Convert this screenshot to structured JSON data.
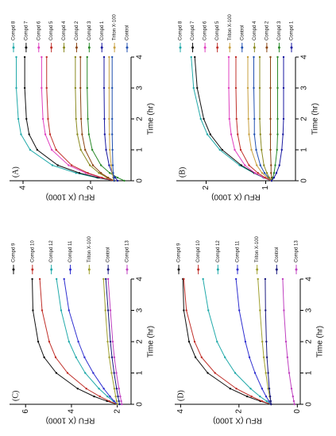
{
  "chart_data": [
    {
      "type": "line",
      "label": "(A)",
      "ylabel": "RFU (X 1000)",
      "xlabel": "Time (hr)",
      "x": [
        0,
        0.1,
        0.25,
        0.5,
        1,
        1.5,
        2,
        3,
        4
      ],
      "xlim": [
        0,
        4
      ],
      "xticks": [
        0,
        1,
        2,
        3,
        4
      ],
      "ylim": [
        0.8,
        4.4
      ],
      "yticks": [
        2,
        4
      ],
      "series": [
        {
          "name": "Compd 8",
          "color": "#22aaaa",
          "values": [
            1.3,
            1.82,
            2.43,
            3.13,
            3.79,
            4.06,
            4.14,
            4.2,
            4.2
          ]
        },
        {
          "name": "Compd 7",
          "color": "#111111",
          "values": [
            1.3,
            1.78,
            2.33,
            2.97,
            3.58,
            3.82,
            3.9,
            3.95,
            3.95
          ]
        },
        {
          "name": "Compd 6",
          "color": "#e040c0",
          "values": [
            1.3,
            1.69,
            2.14,
            2.65,
            3.15,
            3.34,
            3.41,
            3.45,
            3.45
          ]
        },
        {
          "name": "Compd 5",
          "color": "#c0302a",
          "values": [
            1.3,
            1.66,
            2.08,
            2.56,
            3.02,
            3.2,
            3.26,
            3.3,
            3.3
          ]
        },
        {
          "name": "Compd 4",
          "color": "#8a8a20",
          "values": [
            1.3,
            1.51,
            1.75,
            2.02,
            2.29,
            2.39,
            2.43,
            2.45,
            2.45
          ]
        },
        {
          "name": "Compd 2",
          "color": "#8b4513",
          "values": [
            1.3,
            1.48,
            1.69,
            1.93,
            2.16,
            2.25,
            2.28,
            2.3,
            2.3
          ]
        },
        {
          "name": "Compd 3",
          "color": "#2a8a2a",
          "values": [
            1.0,
            1.2,
            1.43,
            1.69,
            1.95,
            2.05,
            2.08,
            2.1,
            2.1
          ]
        },
        {
          "name": "Compd 1",
          "color": "#1a1aa0",
          "values": [
            1.2,
            1.27,
            1.36,
            1.45,
            1.54,
            1.58,
            1.59,
            1.6,
            1.6
          ]
        },
        {
          "name": "Triton X-100",
          "color": "#c8a040",
          "values": [
            1.3,
            1.33,
            1.36,
            1.39,
            1.43,
            1.44,
            1.45,
            1.45,
            1.45
          ]
        },
        {
          "name": "Control",
          "color": "#2050b0",
          "values": [
            1.3,
            1.31,
            1.33,
            1.34,
            1.35,
            1.36,
            1.36,
            1.36,
            1.36
          ]
        }
      ]
    },
    {
      "type": "line",
      "label": "(B)",
      "ylabel": "RFU (X 1000)",
      "xlabel": "Time (hr)",
      "x": [
        0,
        0.1,
        0.25,
        0.5,
        1,
        1.5,
        2,
        3,
        4
      ],
      "xlim": [
        0,
        4
      ],
      "xticks": [
        0,
        1,
        2,
        3,
        4
      ],
      "ylim": [
        0.5,
        2.5
      ],
      "yticks": [
        1,
        2
      ],
      "series": [
        {
          "name": "Compd 8",
          "color": "#22aaaa",
          "values": [
            0.9,
            1.04,
            1.2,
            1.44,
            1.77,
            1.98,
            2.09,
            2.21,
            2.25
          ]
        },
        {
          "name": "Compd 7",
          "color": "#111111",
          "values": [
            0.9,
            1.03,
            1.19,
            1.41,
            1.73,
            1.93,
            2.04,
            2.15,
            2.19
          ]
        },
        {
          "name": "Compd 6",
          "color": "#e040c0",
          "values": [
            0.9,
            1.03,
            1.18,
            1.35,
            1.52,
            1.58,
            1.61,
            1.62,
            1.62
          ]
        },
        {
          "name": "Compd 5",
          "color": "#c0302a",
          "values": [
            0.9,
            1.01,
            1.13,
            1.28,
            1.42,
            1.47,
            1.49,
            1.5,
            1.5
          ]
        },
        {
          "name": "Triton X-100",
          "color": "#c8a040",
          "values": [
            0.9,
            0.97,
            1.06,
            1.15,
            1.24,
            1.28,
            1.29,
            1.3,
            1.3
          ]
        },
        {
          "name": "Control",
          "color": "#2050b0",
          "values": [
            0.9,
            0.95,
            1.02,
            1.09,
            1.16,
            1.19,
            1.19,
            1.2,
            1.2
          ]
        },
        {
          "name": "Compd 4",
          "color": "#8a8a20",
          "values": [
            0.9,
            0.94,
            0.98,
            1.03,
            1.07,
            1.09,
            1.1,
            1.1,
            1.1
          ]
        },
        {
          "name": "Compd 2",
          "color": "#8b4513",
          "values": [
            0.9,
            0.9,
            0.91,
            0.91,
            0.92,
            0.92,
            0.92,
            0.92,
            0.92
          ]
        },
        {
          "name": "Compd 3",
          "color": "#2a8a2a",
          "values": [
            0.9,
            0.88,
            0.86,
            0.84,
            0.81,
            0.8,
            0.8,
            0.8,
            0.8
          ]
        },
        {
          "name": "Compd 1",
          "color": "#1a1aa0",
          "values": [
            0.9,
            0.86,
            0.82,
            0.77,
            0.73,
            0.71,
            0.7,
            0.7,
            0.7
          ]
        }
      ]
    },
    {
      "type": "line",
      "label": "(C)",
      "ylabel": "RFU (X 1000)",
      "xlabel": "Time (hr)",
      "x": [
        0,
        0.1,
        0.25,
        0.5,
        1,
        1.5,
        2,
        3,
        4
      ],
      "xlim": [
        0,
        4
      ],
      "xticks": [
        0,
        1,
        2,
        3,
        4
      ],
      "ylim": [
        1.4,
        6.7
      ],
      "yticks": [
        2,
        4,
        6
      ],
      "series": [
        {
          "name": "Compd 9",
          "color": "#111111",
          "values": [
            2.0,
            2.45,
            3.01,
            3.73,
            4.66,
            5.19,
            5.45,
            5.68,
            5.71
          ]
        },
        {
          "name": "Compd 10",
          "color": "#c0302a",
          "values": [
            2.0,
            2.35,
            2.76,
            3.35,
            4.17,
            4.69,
            4.97,
            5.28,
            5.38
          ]
        },
        {
          "name": "Compd 12",
          "color": "#22aaaa",
          "values": [
            2.0,
            2.17,
            2.43,
            2.8,
            3.4,
            3.8,
            4.11,
            4.45,
            4.65
          ]
        },
        {
          "name": "Compd 11",
          "color": "#3030d0",
          "values": [
            2.0,
            2.14,
            2.32,
            2.59,
            3.05,
            3.43,
            3.7,
            4.11,
            4.32
          ]
        },
        {
          "name": "Triton X-100",
          "color": "#a0a030",
          "values": [
            2.0,
            2.03,
            2.07,
            2.13,
            2.25,
            2.35,
            2.42,
            2.52,
            2.6
          ]
        },
        {
          "name": "Control",
          "color": "#1a1a80",
          "values": [
            1.9,
            1.93,
            1.97,
            2.03,
            2.14,
            2.23,
            2.3,
            2.4,
            2.5
          ]
        },
        {
          "name": "Compd 13",
          "color": "#c040c0",
          "values": [
            1.8,
            1.83,
            1.87,
            1.93,
            2.04,
            2.13,
            2.2,
            2.3,
            2.4
          ]
        }
      ]
    },
    {
      "type": "line",
      "label": "(D)",
      "ylabel": "RFU (X 1000)",
      "xlabel": "Time (hr)",
      "x": [
        0,
        0.1,
        0.25,
        0.5,
        1,
        1.5,
        2,
        3,
        4
      ],
      "xlim": [
        0,
        4
      ],
      "xticks": [
        0,
        1,
        2,
        3,
        4
      ],
      "ylim": [
        -0.1,
        4.2
      ],
      "yticks": [
        0,
        2,
        4
      ],
      "series": [
        {
          "name": "Compd 9",
          "color": "#111111",
          "values": [
            0.9,
            1.27,
            1.72,
            2.3,
            3.07,
            3.49,
            3.71,
            3.89,
            3.92
          ]
        },
        {
          "name": "Compd 10",
          "color": "#c0302a",
          "values": [
            0.9,
            1.21,
            1.57,
            2.09,
            2.82,
            3.28,
            3.52,
            3.8,
            3.89
          ]
        },
        {
          "name": "Compd 12",
          "color": "#22aaaa",
          "values": [
            0.9,
            1.05,
            1.28,
            1.6,
            2.13,
            2.48,
            2.75,
            3.05,
            3.23
          ]
        },
        {
          "name": "Compd 11",
          "color": "#3030d0",
          "values": [
            0.9,
            0.97,
            1.07,
            1.21,
            1.45,
            1.64,
            1.78,
            1.99,
            2.1
          ]
        },
        {
          "name": "Triton X-100",
          "color": "#a0a030",
          "values": [
            0.9,
            0.92,
            0.95,
            1.0,
            1.08,
            1.15,
            1.2,
            1.28,
            1.35
          ]
        },
        {
          "name": "Control",
          "color": "#1a1a80",
          "values": [
            0.9,
            0.91,
            0.93,
            0.96,
            1.0,
            1.04,
            1.06,
            1.09,
            1.1
          ]
        },
        {
          "name": "Compd 13",
          "color": "#c040c0",
          "values": [
            0.1,
            0.12,
            0.15,
            0.2,
            0.28,
            0.34,
            0.39,
            0.46,
            0.5
          ]
        }
      ]
    }
  ]
}
